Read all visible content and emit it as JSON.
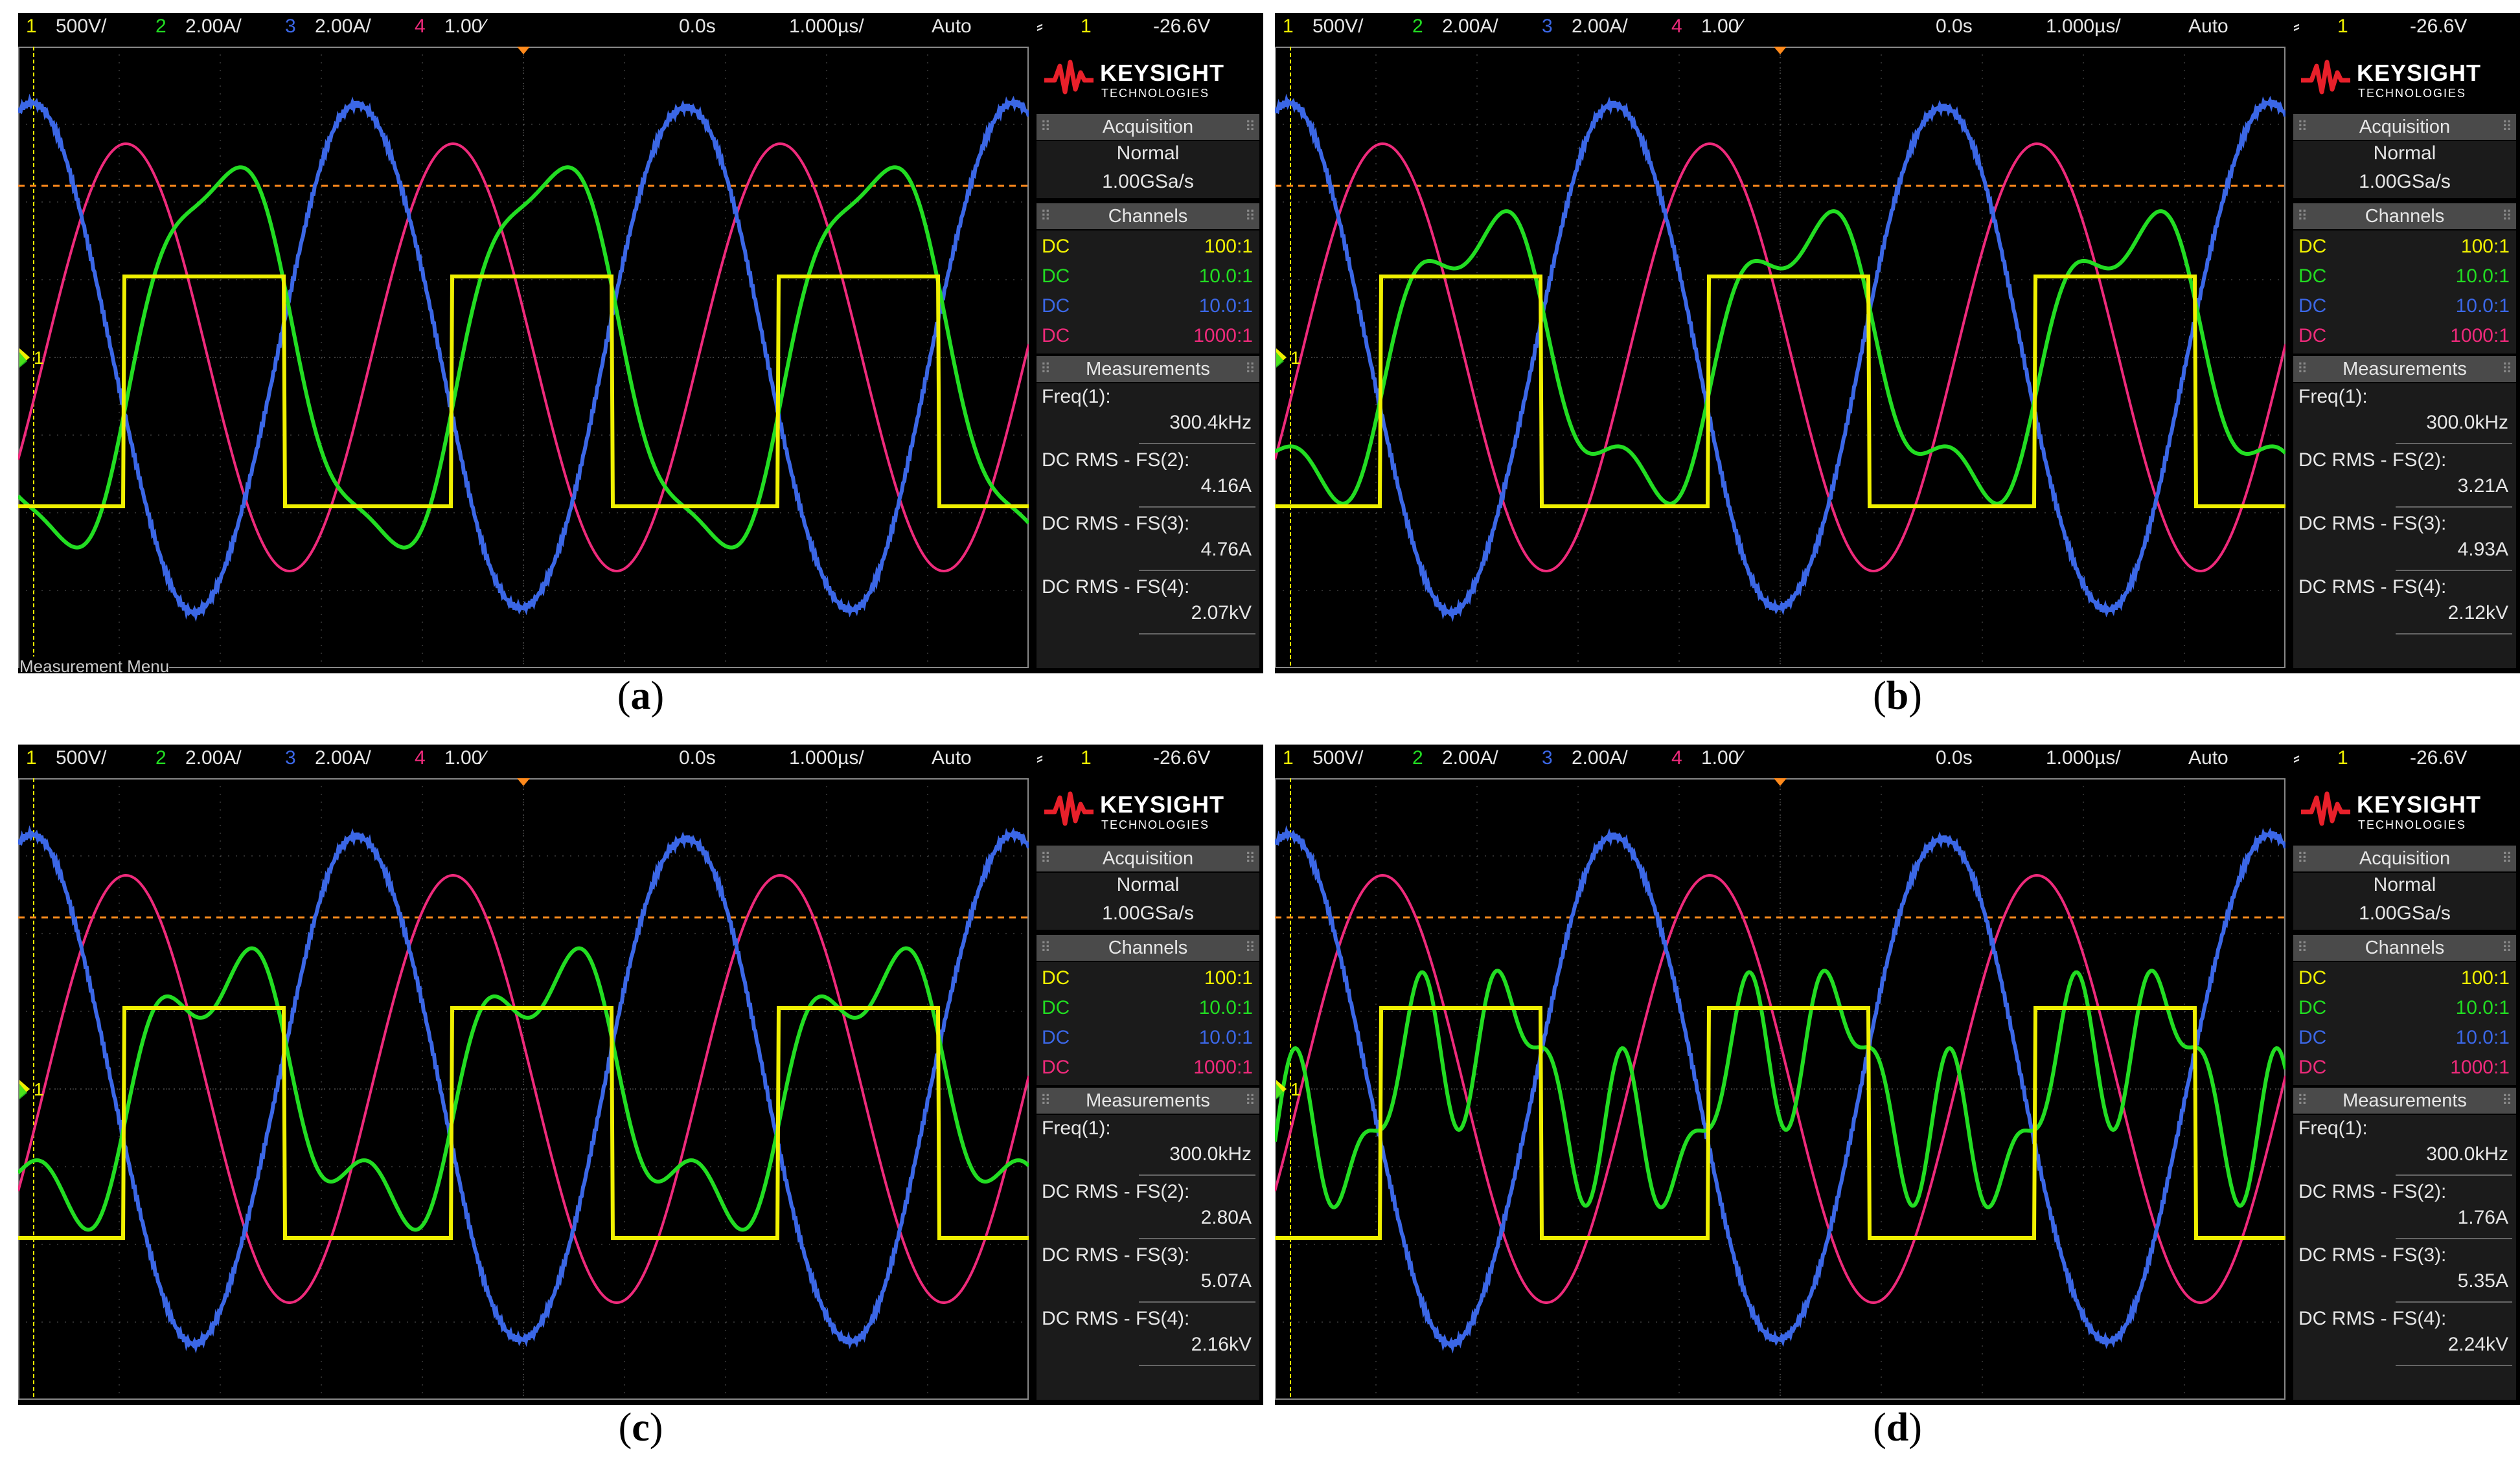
{
  "colors": {
    "ch1": "#f0f000",
    "ch2": "#22dd22",
    "ch3": "#3b67e6",
    "ch4": "#ee2a7b",
    "trigger": "#ff8a1c",
    "grid": "#5a5a5a",
    "brand_red": "#e8202a"
  },
  "common": {
    "ch1_label": "1",
    "ch1_scale": "500V/",
    "ch2_label": "2",
    "ch2_scale": "2.00A/",
    "ch3_label": "3",
    "ch3_scale": "2.00A/",
    "ch4_label": "4",
    "ch4_scale": "1.00⁄",
    "delay": "0.0s",
    "timebase": "1.000µs/",
    "trigger_mode": "Auto",
    "trigger_icon": "trigger-edge-icon",
    "trigger_channel": "1",
    "trigger_level": "-26.6V",
    "brand_name": "KEYSIGHT",
    "brand_sub": "TECHNOLOGIES",
    "acq_header": "Acquisition",
    "acq_mode": "Normal",
    "acq_rate": "1.00GSa/s",
    "channels_header": "Channels",
    "channels": [
      {
        "coupling": "DC",
        "probe": "100:1",
        "color": "#f0f000"
      },
      {
        "coupling": "DC",
        "probe": "10.0:1",
        "color": "#22dd22"
      },
      {
        "coupling": "DC",
        "probe": "10.0:1",
        "color": "#3b67e6"
      },
      {
        "coupling": "DC",
        "probe": "1000:1",
        "color": "#ee2a7b"
      }
    ],
    "meas_header": "Measurements",
    "meas_labels": [
      "Freq(1):",
      "DC RMS - FS(2):",
      "DC RMS - FS(3):",
      "DC RMS - FS(4):"
    ],
    "ground_marker": "1"
  },
  "panels": [
    {
      "caption_open": "(",
      "caption_letter": "a",
      "caption_close": ")",
      "values": [
        "300.4kHz",
        "4.16A",
        "4.76A",
        "2.07kV"
      ],
      "bottom_text": "Measurement Menu",
      "green_shape": "a"
    },
    {
      "caption_open": "(",
      "caption_letter": "b",
      "caption_close": ")",
      "values": [
        "300.0kHz",
        "3.21A",
        "4.93A",
        "2.12kV"
      ],
      "bottom_text": "",
      "green_shape": "b"
    },
    {
      "caption_open": "(",
      "caption_letter": "c",
      "caption_close": ")",
      "values": [
        "300.0kHz",
        "2.80A",
        "5.07A",
        "2.16kV"
      ],
      "bottom_text": "",
      "green_shape": "c"
    },
    {
      "caption_open": "(",
      "caption_letter": "d",
      "caption_close": ")",
      "values": [
        "300.0kHz",
        "1.76A",
        "5.35A",
        "2.24kV"
      ],
      "bottom_text": "",
      "green_shape": "d"
    }
  ]
}
